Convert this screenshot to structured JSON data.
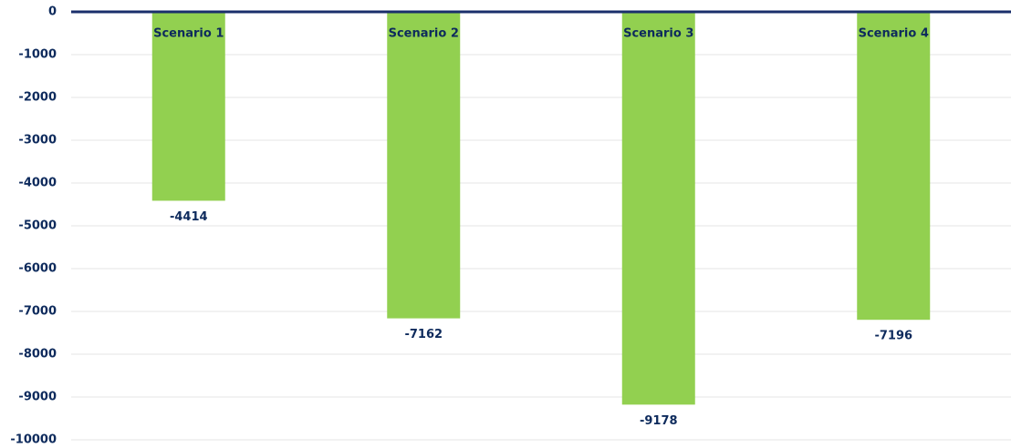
{
  "chart_data": {
    "type": "bar",
    "categories": [
      "Scenario 1",
      "Scenario 2",
      "Scenario 3",
      "Scenario 4"
    ],
    "values": [
      -4414,
      -7162,
      -9178,
      -7196
    ],
    "color": "#92d050",
    "ylim": [
      -10000,
      0
    ],
    "yticks": [
      0,
      -1000,
      -2000,
      -3000,
      -4000,
      -5000,
      -6000,
      -7000,
      -8000,
      -9000,
      -10000
    ],
    "grid": true
  }
}
